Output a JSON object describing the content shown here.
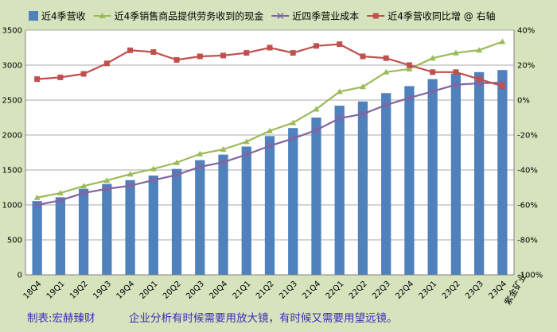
{
  "chart_data": {
    "type": "bar+line",
    "categories": [
      "18Q4",
      "19Q1",
      "19Q2",
      "19Q3",
      "19Q4",
      "20Q1",
      "20Q2",
      "20Q3",
      "20Q4",
      "21Q1",
      "21Q2",
      "21Q3",
      "21Q4",
      "22Q1",
      "22Q2",
      "22Q3",
      "22Q4",
      "23Q1",
      "23Q2",
      "23Q3",
      "23Q4"
    ],
    "series": [
      {
        "name": "近4季营收",
        "type": "bar",
        "axis": "left",
        "color": "#4f81bd",
        "values": [
          1055,
          1110,
          1230,
          1300,
          1355,
          1420,
          1515,
          1640,
          1720,
          1835,
          1985,
          2100,
          2250,
          2420,
          2480,
          2600,
          2700,
          2800,
          2880,
          2900,
          2930
        ]
      },
      {
        "name": "近4季销售商品提供劳务收到的现金",
        "type": "line",
        "axis": "left",
        "color": "#9bbb59",
        "marker": "triangle",
        "values": [
          1105,
          1170,
          1270,
          1350,
          1440,
          1515,
          1605,
          1730,
          1795,
          1905,
          2060,
          2175,
          2370,
          2620,
          2690,
          2900,
          2945,
          3100,
          3175,
          3215,
          3335
        ]
      },
      {
        "name": "近四季营业成本",
        "type": "line",
        "axis": "left",
        "color": "#8064a2",
        "marker": "x",
        "values": [
          1000,
          1065,
          1170,
          1230,
          1275,
          1355,
          1430,
          1545,
          1610,
          1720,
          1845,
          1950,
          2070,
          2240,
          2300,
          2430,
          2530,
          2625,
          2720,
          2740,
          2750
        ]
      },
      {
        "name": "近4季营收同比增 @ 右轴",
        "type": "line",
        "axis": "right",
        "color": "#c0504d",
        "marker": "square",
        "values": [
          12,
          13,
          15,
          21,
          28.5,
          27.5,
          23,
          25,
          25.5,
          27,
          30,
          27,
          31,
          32,
          25,
          24,
          20,
          16,
          16,
          12,
          8
        ]
      }
    ],
    "left_axis": {
      "min": 0,
      "max": 3500,
      "step": 500
    },
    "right_axis": {
      "min": -100,
      "max": 40,
      "step": 20,
      "unit": "%"
    },
    "grid": true,
    "legend_position": "top"
  },
  "footer": {
    "source": "制表:宏赫臻财",
    "caption": "企业分析有时候需要用放大镜，有时候又需要用望远镜。"
  },
  "side_label": "紫金矿业"
}
